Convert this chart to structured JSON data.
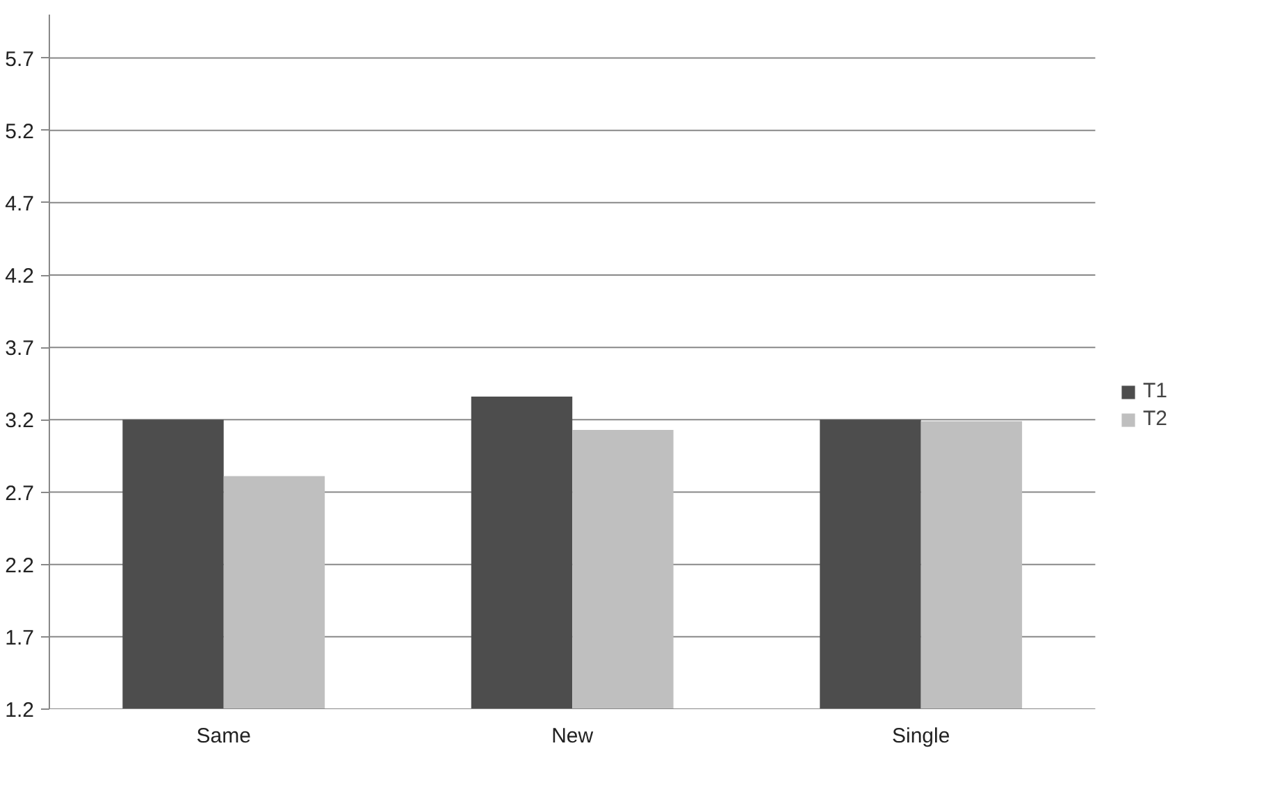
{
  "chart_data": {
    "type": "bar",
    "categories": [
      "Same",
      "New",
      "Single"
    ],
    "series": [
      {
        "name": "T1",
        "color": "#4d4d4d",
        "values": [
          3.2,
          3.36,
          3.2
        ]
      },
      {
        "name": "T2",
        "color": "#bfbfbf",
        "values": [
          2.81,
          3.13,
          3.19
        ]
      }
    ],
    "ylim": [
      1.2,
      6.0
    ],
    "yticks": [
      1.2,
      1.7,
      2.2,
      2.7,
      3.2,
      3.7,
      4.2,
      4.7,
      5.2,
      5.7
    ],
    "grid": "y",
    "legend": "right"
  }
}
